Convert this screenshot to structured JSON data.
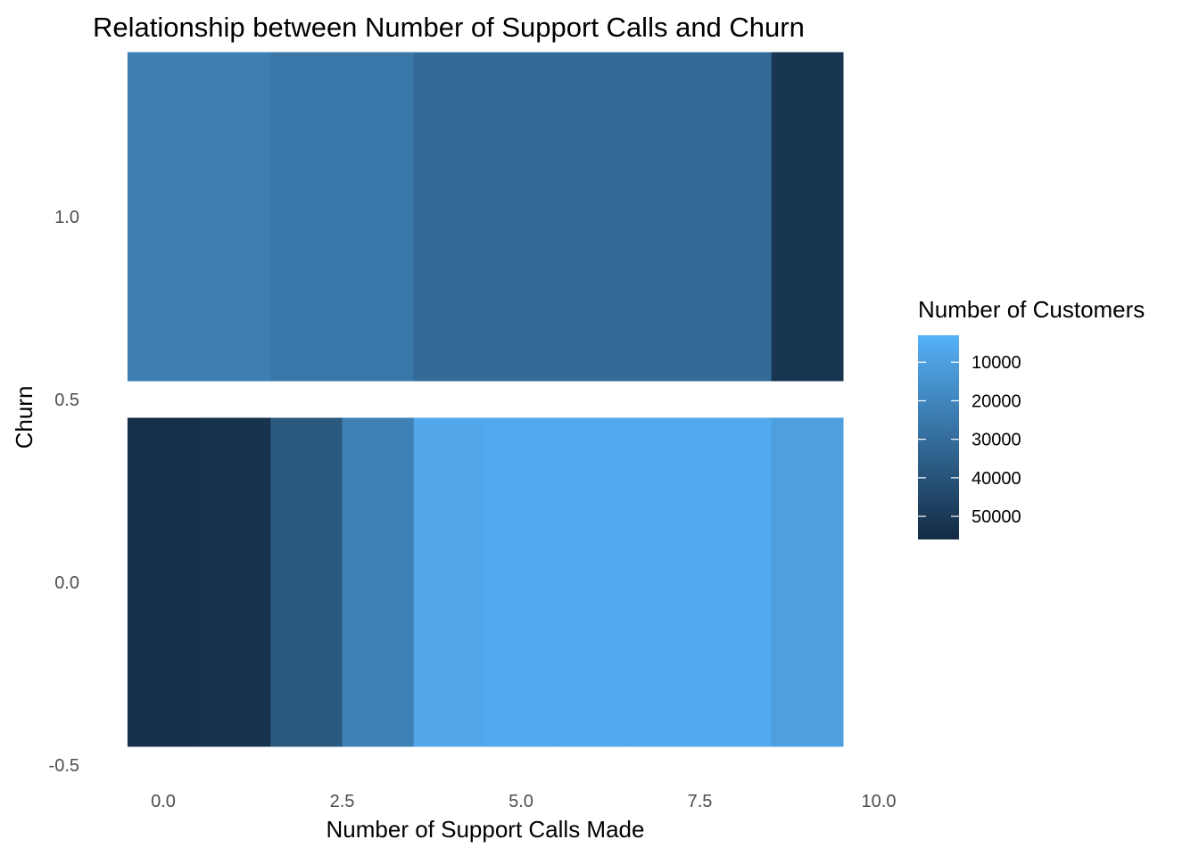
{
  "chart_data": {
    "type": "heatmap",
    "title": "Relationship between Number of Support Calls and Churn",
    "xlabel": "Number of Support Calls Made",
    "ylabel": "Churn",
    "xlim": [
      -0.5,
      10
    ],
    "ylim": [
      -0.5,
      1.5
    ],
    "x_ticks": [
      "0.0",
      "2.5",
      "5.0",
      "7.5",
      "10.0"
    ],
    "x_tick_values": [
      0,
      2.5,
      5,
      7.5,
      10
    ],
    "y_ticks": [
      "-0.5",
      "0.0",
      "0.5",
      "1.0"
    ],
    "y_tick_values": [
      -0.5,
      0,
      0.5,
      1
    ],
    "x": [
      0,
      1,
      2,
      3,
      4,
      5,
      6,
      7,
      8,
      9
    ],
    "y": [
      0,
      1
    ],
    "values": [
      [
        54000,
        53000,
        38000,
        22000,
        7000,
        6000,
        6000,
        6000,
        6000,
        10000
      ],
      [
        23000,
        23000,
        26000,
        26000,
        31000,
        31000,
        31000,
        31000,
        31000,
        52000
      ]
    ],
    "legend": {
      "title": "Number of Customers",
      "labels": [
        "10000",
        "20000",
        "30000",
        "40000",
        "50000"
      ],
      "values": [
        10000,
        20000,
        30000,
        40000,
        50000
      ],
      "range": [
        3000,
        56000
      ],
      "placement": "right",
      "low_color": "#56B1F7",
      "high_color": "#132B43"
    },
    "grid": false
  }
}
